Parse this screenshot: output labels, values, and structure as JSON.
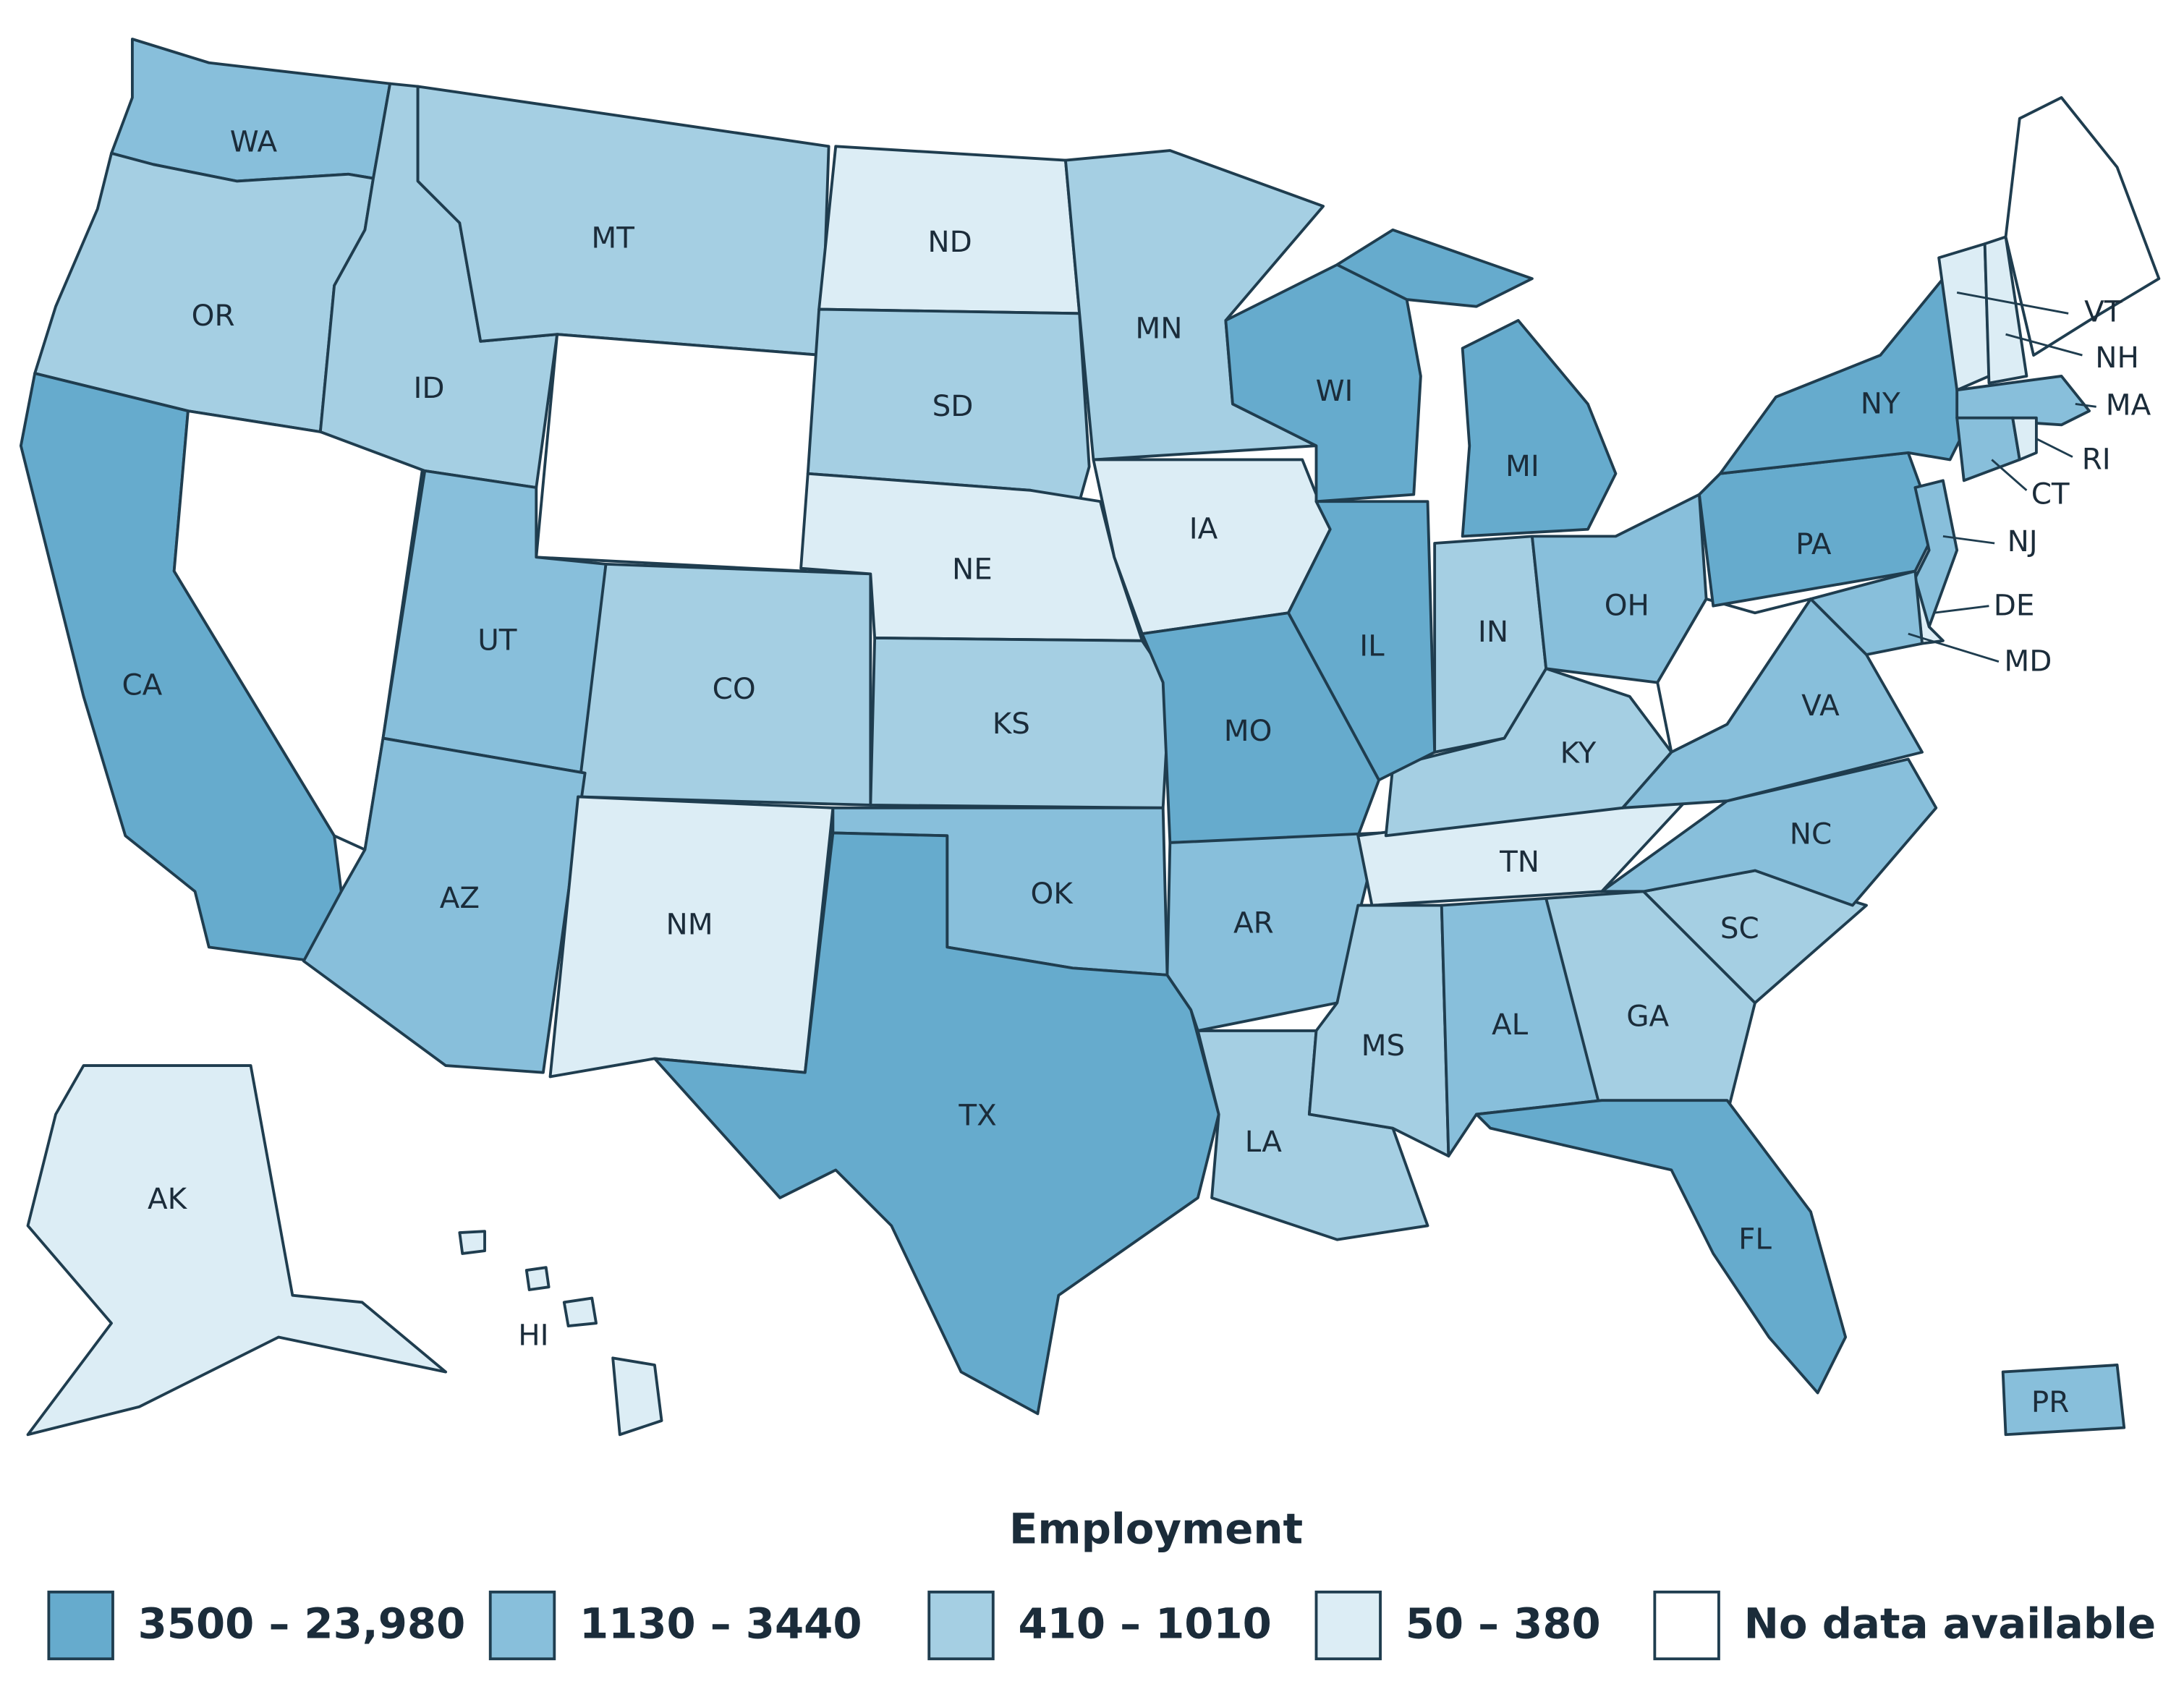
{
  "states": [
    {
      "abbr": "WA",
      "level": 1
    },
    {
      "abbr": "OR",
      "level": 2
    },
    {
      "abbr": "CA",
      "level": 0
    },
    {
      "abbr": null,
      "level": 4
    },
    {
      "abbr": "ID",
      "level": 2
    },
    {
      "abbr": "MT",
      "level": 2
    },
    {
      "abbr": null,
      "level": 4
    },
    {
      "abbr": "UT",
      "level": 1
    },
    {
      "abbr": "CO",
      "level": 2
    },
    {
      "abbr": "AZ",
      "level": 1
    },
    {
      "abbr": "NM",
      "level": 3
    },
    {
      "abbr": "ND",
      "level": 3
    },
    {
      "abbr": "SD",
      "level": 2
    },
    {
      "abbr": "NE",
      "level": 3
    },
    {
      "abbr": "KS",
      "level": 2
    },
    {
      "abbr": "OK",
      "level": 1
    },
    {
      "abbr": "TX",
      "level": 0
    },
    {
      "abbr": "MN",
      "level": 2
    },
    {
      "abbr": "IA",
      "level": 3
    },
    {
      "abbr": "MO",
      "level": 0
    },
    {
      "abbr": "AR",
      "level": 1
    },
    {
      "abbr": "LA",
      "level": 2
    },
    {
      "abbr": "MS",
      "level": 2
    },
    {
      "abbr": "AL",
      "level": 1
    },
    {
      "abbr": "GA",
      "level": 2
    },
    {
      "abbr": "FL",
      "level": 0
    },
    {
      "abbr": "SC",
      "level": 2
    },
    {
      "abbr": "NC",
      "level": 1
    },
    {
      "abbr": "TN",
      "level": 3
    },
    {
      "abbr": "KY",
      "level": 2
    },
    {
      "abbr": "IN",
      "level": 2
    },
    {
      "abbr": "IL",
      "level": 0
    },
    {
      "abbr": "WI",
      "level": 0
    },
    {
      "abbr": "MI",
      "level": 0
    },
    {
      "abbr": "OH",
      "level": 1
    },
    {
      "abbr": null,
      "level": 4
    },
    {
      "abbr": "VA",
      "level": 1
    },
    {
      "abbr": "PA",
      "level": 0
    },
    {
      "abbr": "NY",
      "level": 0
    },
    {
      "abbr": "VT",
      "level": 3
    },
    {
      "abbr": "NH",
      "level": 3
    },
    {
      "abbr": null,
      "level": 4
    },
    {
      "abbr": "MA",
      "level": 1
    },
    {
      "abbr": "CT",
      "level": 1
    },
    {
      "abbr": "RI",
      "level": 3
    },
    {
      "abbr": "NJ",
      "level": 1
    },
    {
      "abbr": "DE",
      "level": 3
    },
    {
      "abbr": "MD",
      "level": 1
    },
    {
      "abbr": "AK",
      "level": 3
    },
    {
      "abbr": "HI",
      "level": 3
    },
    {
      "abbr": "PR",
      "level": 1
    }
  ],
  "legend": {
    "title": "Employment",
    "items": [
      {
        "label": "3500 – 23,980",
        "color": "#66abcd"
      },
      {
        "label": "1130 – 3440",
        "color": "#88bfdb"
      },
      {
        "label": "410 – 1010",
        "color": "#a5cfe3"
      },
      {
        "label": "50 – 380",
        "color": "#dcedf5"
      },
      {
        "label": "No data available",
        "color": "#ffffff"
      }
    ]
  }
}
